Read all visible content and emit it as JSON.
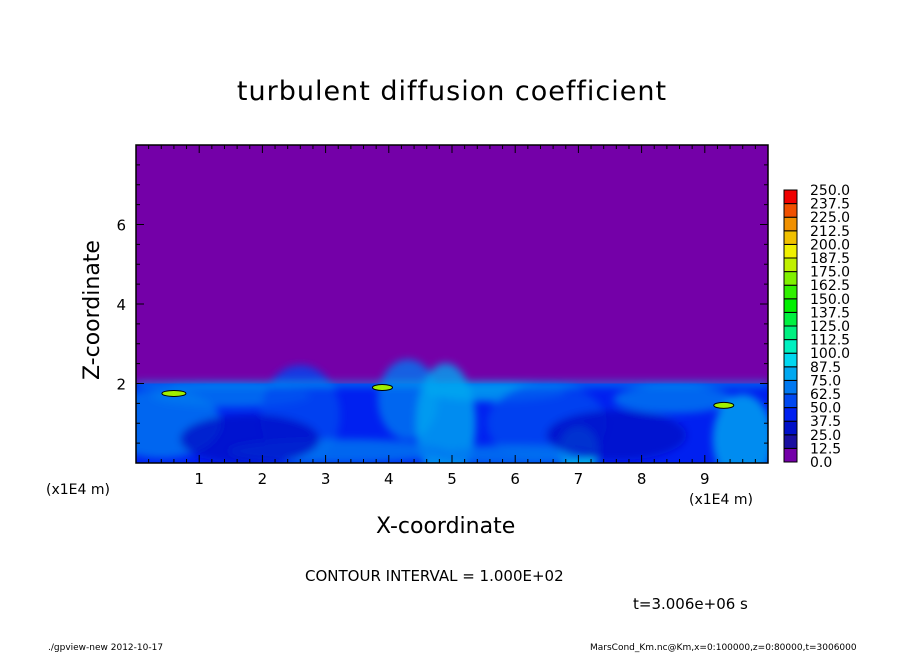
{
  "chart_data": {
    "type": "heatmap",
    "title": "turbulent diffusion coefficient",
    "xlabel": "X-coordinate",
    "ylabel": "Z-coordinate",
    "x_unit": "(x1E4 m)",
    "xlim": [
      0,
      10
    ],
    "ylim": [
      0,
      8
    ],
    "x_ticks": [
      "1",
      "2",
      "3",
      "4",
      "5",
      "6",
      "7",
      "8",
      "9"
    ],
    "y_ticks": [
      "2",
      "4",
      "6"
    ],
    "colorbar": {
      "levels": [
        "0.0",
        "12.5",
        "25.0",
        "37.5",
        "50.0",
        "62.5",
        "75.0",
        "87.5",
        "100.0",
        "112.5",
        "125.0",
        "137.5",
        "150.0",
        "162.5",
        "175.0",
        "187.5",
        "200.0",
        "212.5",
        "225.0",
        "237.5",
        "250.0"
      ],
      "colors": [
        "#7400a8",
        "#1a0fa0",
        "#0010c8",
        "#0020f0",
        "#0048f0",
        "#0078f0",
        "#00a8f0",
        "#00d8f0",
        "#00f0c0",
        "#00f080",
        "#00f040",
        "#00f000",
        "#30f000",
        "#80f000",
        "#c0f000",
        "#f0f000",
        "#f0c000",
        "#f09000",
        "#f05000",
        "#f00000",
        "#f06060"
      ]
    },
    "field_summary": {
      "background_value": "0.0",
      "turbulent_layer_top": 2,
      "typical_layer_value_range": [
        25.0,
        87.5
      ]
    }
  },
  "annotations": {
    "contour_interval": "CONTOUR INTERVAL = 1.000E+02",
    "time": "t=3.006e+06 s",
    "footer_left": "./gpview-new   2012-10-17",
    "footer_right": "MarsCond_Km.nc@Km,x=0:100000,z=0:80000,t=3006000"
  }
}
